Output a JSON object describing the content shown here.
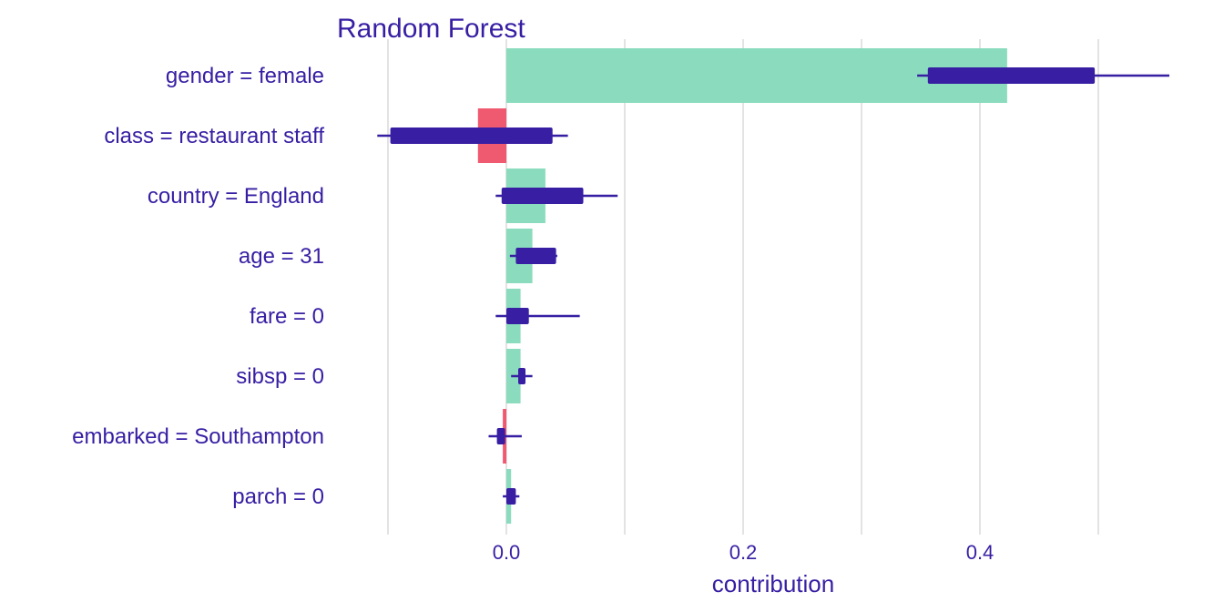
{
  "chart_data": {
    "type": "bar",
    "title": "Random Forest",
    "xlabel": "contribution",
    "ylabel": "",
    "xlim": [
      -0.12,
      0.56
    ],
    "xticks": [
      0.0,
      0.2,
      0.4
    ],
    "xtick_labels": [
      "0.0",
      "0.2",
      "0.4"
    ],
    "grid": true,
    "categories": [
      "gender = female",
      "class = restaurant staff",
      "country = England",
      "age = 31",
      "fare = 0",
      "sibsp = 0",
      "embarked = Southampton",
      "parch = 0"
    ],
    "values": [
      0.423,
      -0.024,
      0.033,
      0.022,
      0.012,
      0.012,
      -0.003,
      0.004
    ],
    "boxes": [
      {
        "whisker_min": 0.347,
        "q1": 0.356,
        "q3": 0.497,
        "whisker_max": 0.56
      },
      {
        "whisker_min": -0.109,
        "q1": -0.098,
        "q3": 0.039,
        "whisker_max": 0.052
      },
      {
        "whisker_min": -0.009,
        "q1": -0.004,
        "q3": 0.065,
        "whisker_max": 0.094
      },
      {
        "whisker_min": 0.003,
        "q1": 0.008,
        "q3": 0.042,
        "whisker_max": 0.043
      },
      {
        "whisker_min": -0.009,
        "q1": 0.0,
        "q3": 0.019,
        "whisker_max": 0.062
      },
      {
        "whisker_min": 0.004,
        "q1": 0.01,
        "q3": 0.014,
        "whisker_max": 0.022
      },
      {
        "whisker_min": -0.015,
        "q1": -0.008,
        "q3": -0.001,
        "whisker_max": 0.013
      },
      {
        "whisker_min": -0.003,
        "q1": 0.0,
        "q3": 0.008,
        "whisker_max": 0.011
      }
    ],
    "colors": {
      "positive": "#8bdcbe",
      "negative": "#f05a71",
      "box": "#371ea3",
      "text": "#371ea3",
      "grid": "#e3e3e3"
    }
  }
}
